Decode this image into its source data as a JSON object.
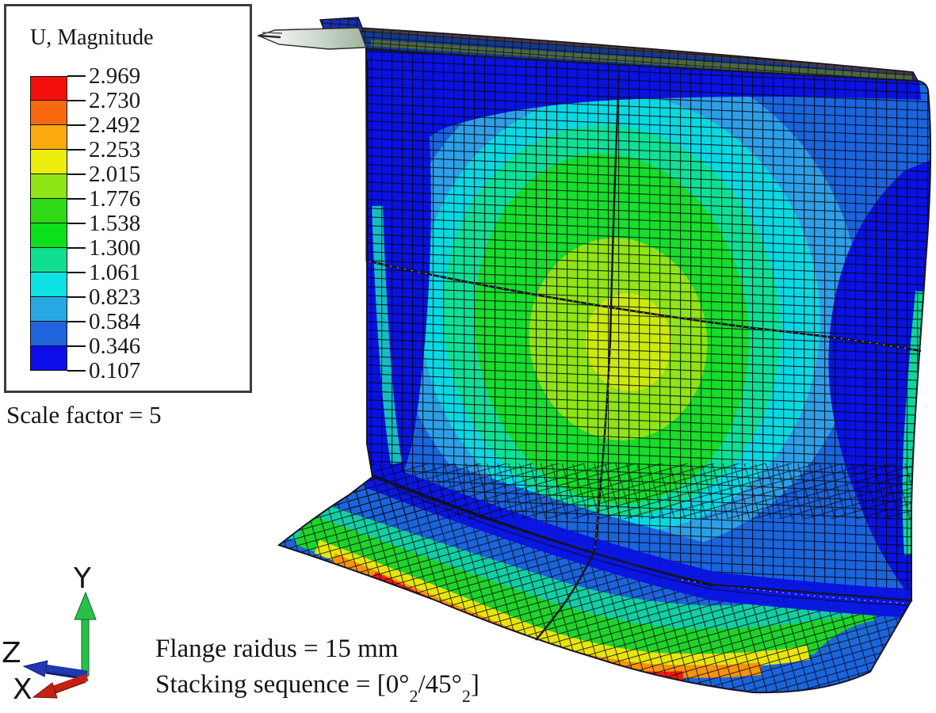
{
  "legend": {
    "title": "U, Magnitude",
    "tick_values": [
      "2.969",
      "2.730",
      "2.492",
      "2.253",
      "2.015",
      "1.776",
      "1.538",
      "1.300",
      "1.061",
      "0.823",
      "0.584",
      "0.346",
      "0.107"
    ],
    "band_colors": [
      "#f50f0c",
      "#f8690f",
      "#fba90e",
      "#ecec0d",
      "#8fe516",
      "#2fd913",
      "#0ce01b",
      "#0fdf8e",
      "#0de2e2",
      "#28a8e2",
      "#2063da",
      "#0d0de8"
    ]
  },
  "scale_factor_label": "Scale factor = 5",
  "annotations": {
    "flange_radius": "Flange raidus = 15 mm",
    "stacking_prefix": "Stacking sequence = [0°",
    "stacking_sub_a": "2",
    "stacking_mid": "/45°",
    "stacking_sub_b": "2",
    "stacking_suffix": "]"
  },
  "triad": {
    "x_label": "X",
    "y_label": "Y",
    "z_label": "Z",
    "axis_colors": {
      "x": "#c42015",
      "y": "#28c04a",
      "z": "#2038b0"
    }
  },
  "model": {
    "colors": {
      "web_base": "#1b64dc",
      "dark_blue": "#0a12e0",
      "sky_blue": "#2e9fe6",
      "cyan": "#0bd9e2",
      "teal": "#0fe096",
      "green": "#17dd2c",
      "yellow_green": "#8fe515",
      "yellow_core": "#ccea0e",
      "flange_teal": "#12cfa2",
      "flange_green": "#1fd32a",
      "flange_yellow": "#e8e50d",
      "flange_orange": "#f8930d",
      "flange_red": "#f01b0c",
      "strip_blue": "#14388c",
      "sliver_gray": "#9fb39f"
    }
  }
}
